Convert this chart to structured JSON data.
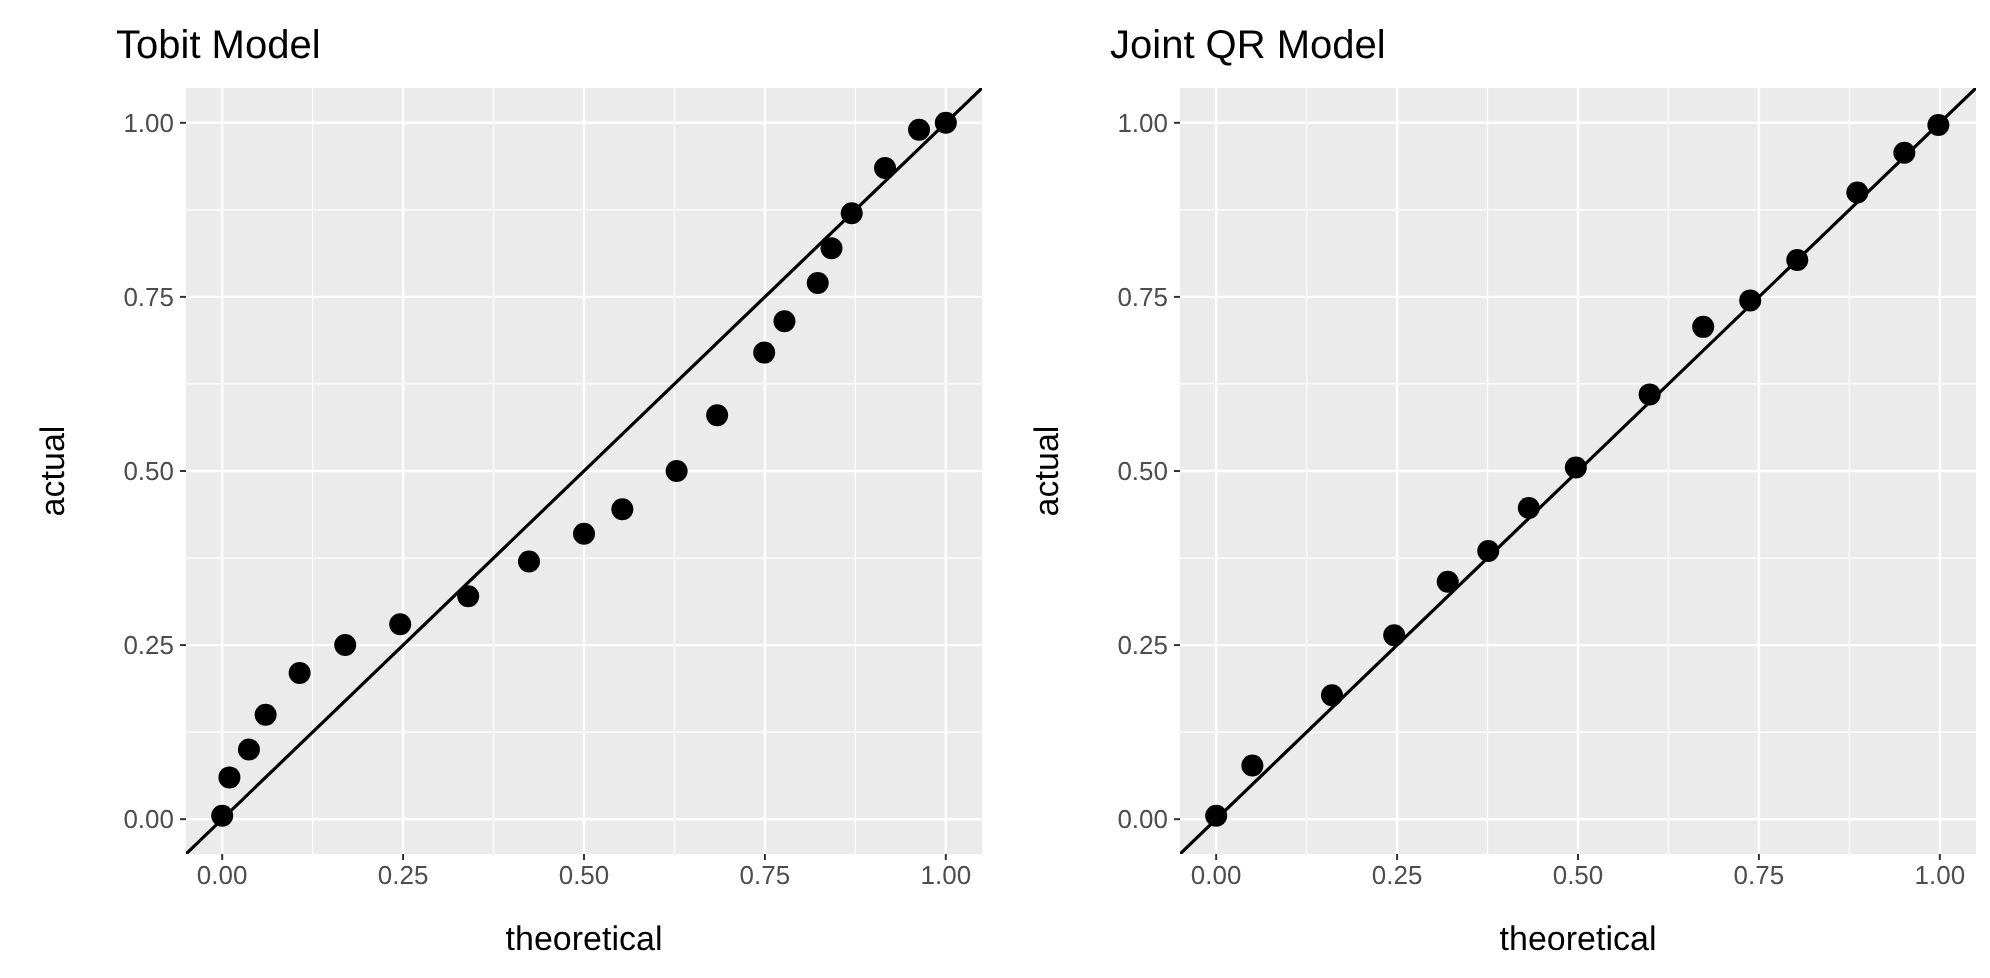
{
  "chart_data": [
    {
      "type": "scatter",
      "title": "Tobit Model",
      "xlabel": "theoretical",
      "ylabel": "actual",
      "xlim": [
        -0.05,
        1.05
      ],
      "ylim": [
        -0.05,
        1.05
      ],
      "xticks": [
        {
          "value": 0,
          "label": "0.00"
        },
        {
          "value": 0.25,
          "label": "0.25"
        },
        {
          "value": 0.5,
          "label": "0.50"
        },
        {
          "value": 0.75,
          "label": "0.75"
        },
        {
          "value": 1,
          "label": "1.00"
        }
      ],
      "yticks": [
        {
          "value": 0,
          "label": "0.00"
        },
        {
          "value": 0.25,
          "label": "0.25"
        },
        {
          "value": 0.5,
          "label": "0.50"
        },
        {
          "value": 0.75,
          "label": "0.75"
        },
        {
          "value": 1,
          "label": "1.00"
        }
      ],
      "grid": true,
      "series": [
        {
          "marker": "circle",
          "color": "#000000",
          "x": [
            0,
            0.01,
            0.037,
            0.06,
            0.107,
            0.17,
            0.246,
            0.34,
            0.424,
            0.5,
            0.553,
            0.628,
            0.684,
            0.749,
            0.777,
            0.823,
            0.842,
            0.87,
            0.916,
            0.963,
            1
          ],
          "values": [
            0.005,
            0.06,
            0.1,
            0.15,
            0.21,
            0.25,
            0.28,
            0.32,
            0.37,
            0.41,
            0.445,
            0.5,
            0.58,
            0.67,
            0.715,
            0.77,
            0.82,
            0.87,
            0.935,
            0.99,
            1.0
          ]
        },
        {
          "type": "line",
          "color": "#000000",
          "x": [
            -0.05,
            1.05
          ],
          "values": [
            -0.05,
            1.05
          ]
        }
      ]
    },
    {
      "type": "scatter",
      "title": "Joint QR Model",
      "xlabel": "theoretical",
      "ylabel": "actual",
      "xlim": [
        -0.05,
        1.05
      ],
      "ylim": [
        -0.05,
        1.05
      ],
      "xticks": [
        {
          "value": 0,
          "label": "0.00"
        },
        {
          "value": 0.25,
          "label": "0.25"
        },
        {
          "value": 0.5,
          "label": "0.50"
        },
        {
          "value": 0.75,
          "label": "0.75"
        },
        {
          "value": 1,
          "label": "1.00"
        }
      ],
      "yticks": [
        {
          "value": 0,
          "label": "0.00"
        },
        {
          "value": 0.25,
          "label": "0.25"
        },
        {
          "value": 0.5,
          "label": "0.50"
        },
        {
          "value": 0.75,
          "label": "0.75"
        },
        {
          "value": 1,
          "label": "1.00"
        }
      ],
      "grid": true,
      "series": [
        {
          "marker": "circle",
          "color": "#000000",
          "x": [
            0,
            0.05,
            0.16,
            0.246,
            0.32,
            0.376,
            0.432,
            0.497,
            0.599,
            0.673,
            0.738,
            0.803,
            0.886,
            0.951,
            0.998
          ],
          "values": [
            0.005,
            0.077,
            0.178,
            0.264,
            0.341,
            0.385,
            0.447,
            0.505,
            0.61,
            0.707,
            0.745,
            0.803,
            0.9,
            0.957,
            0.997
          ]
        },
        {
          "type": "line",
          "color": "#000000",
          "x": [
            -0.05,
            1.05
          ],
          "values": [
            -0.05,
            1.05
          ]
        }
      ]
    }
  ]
}
